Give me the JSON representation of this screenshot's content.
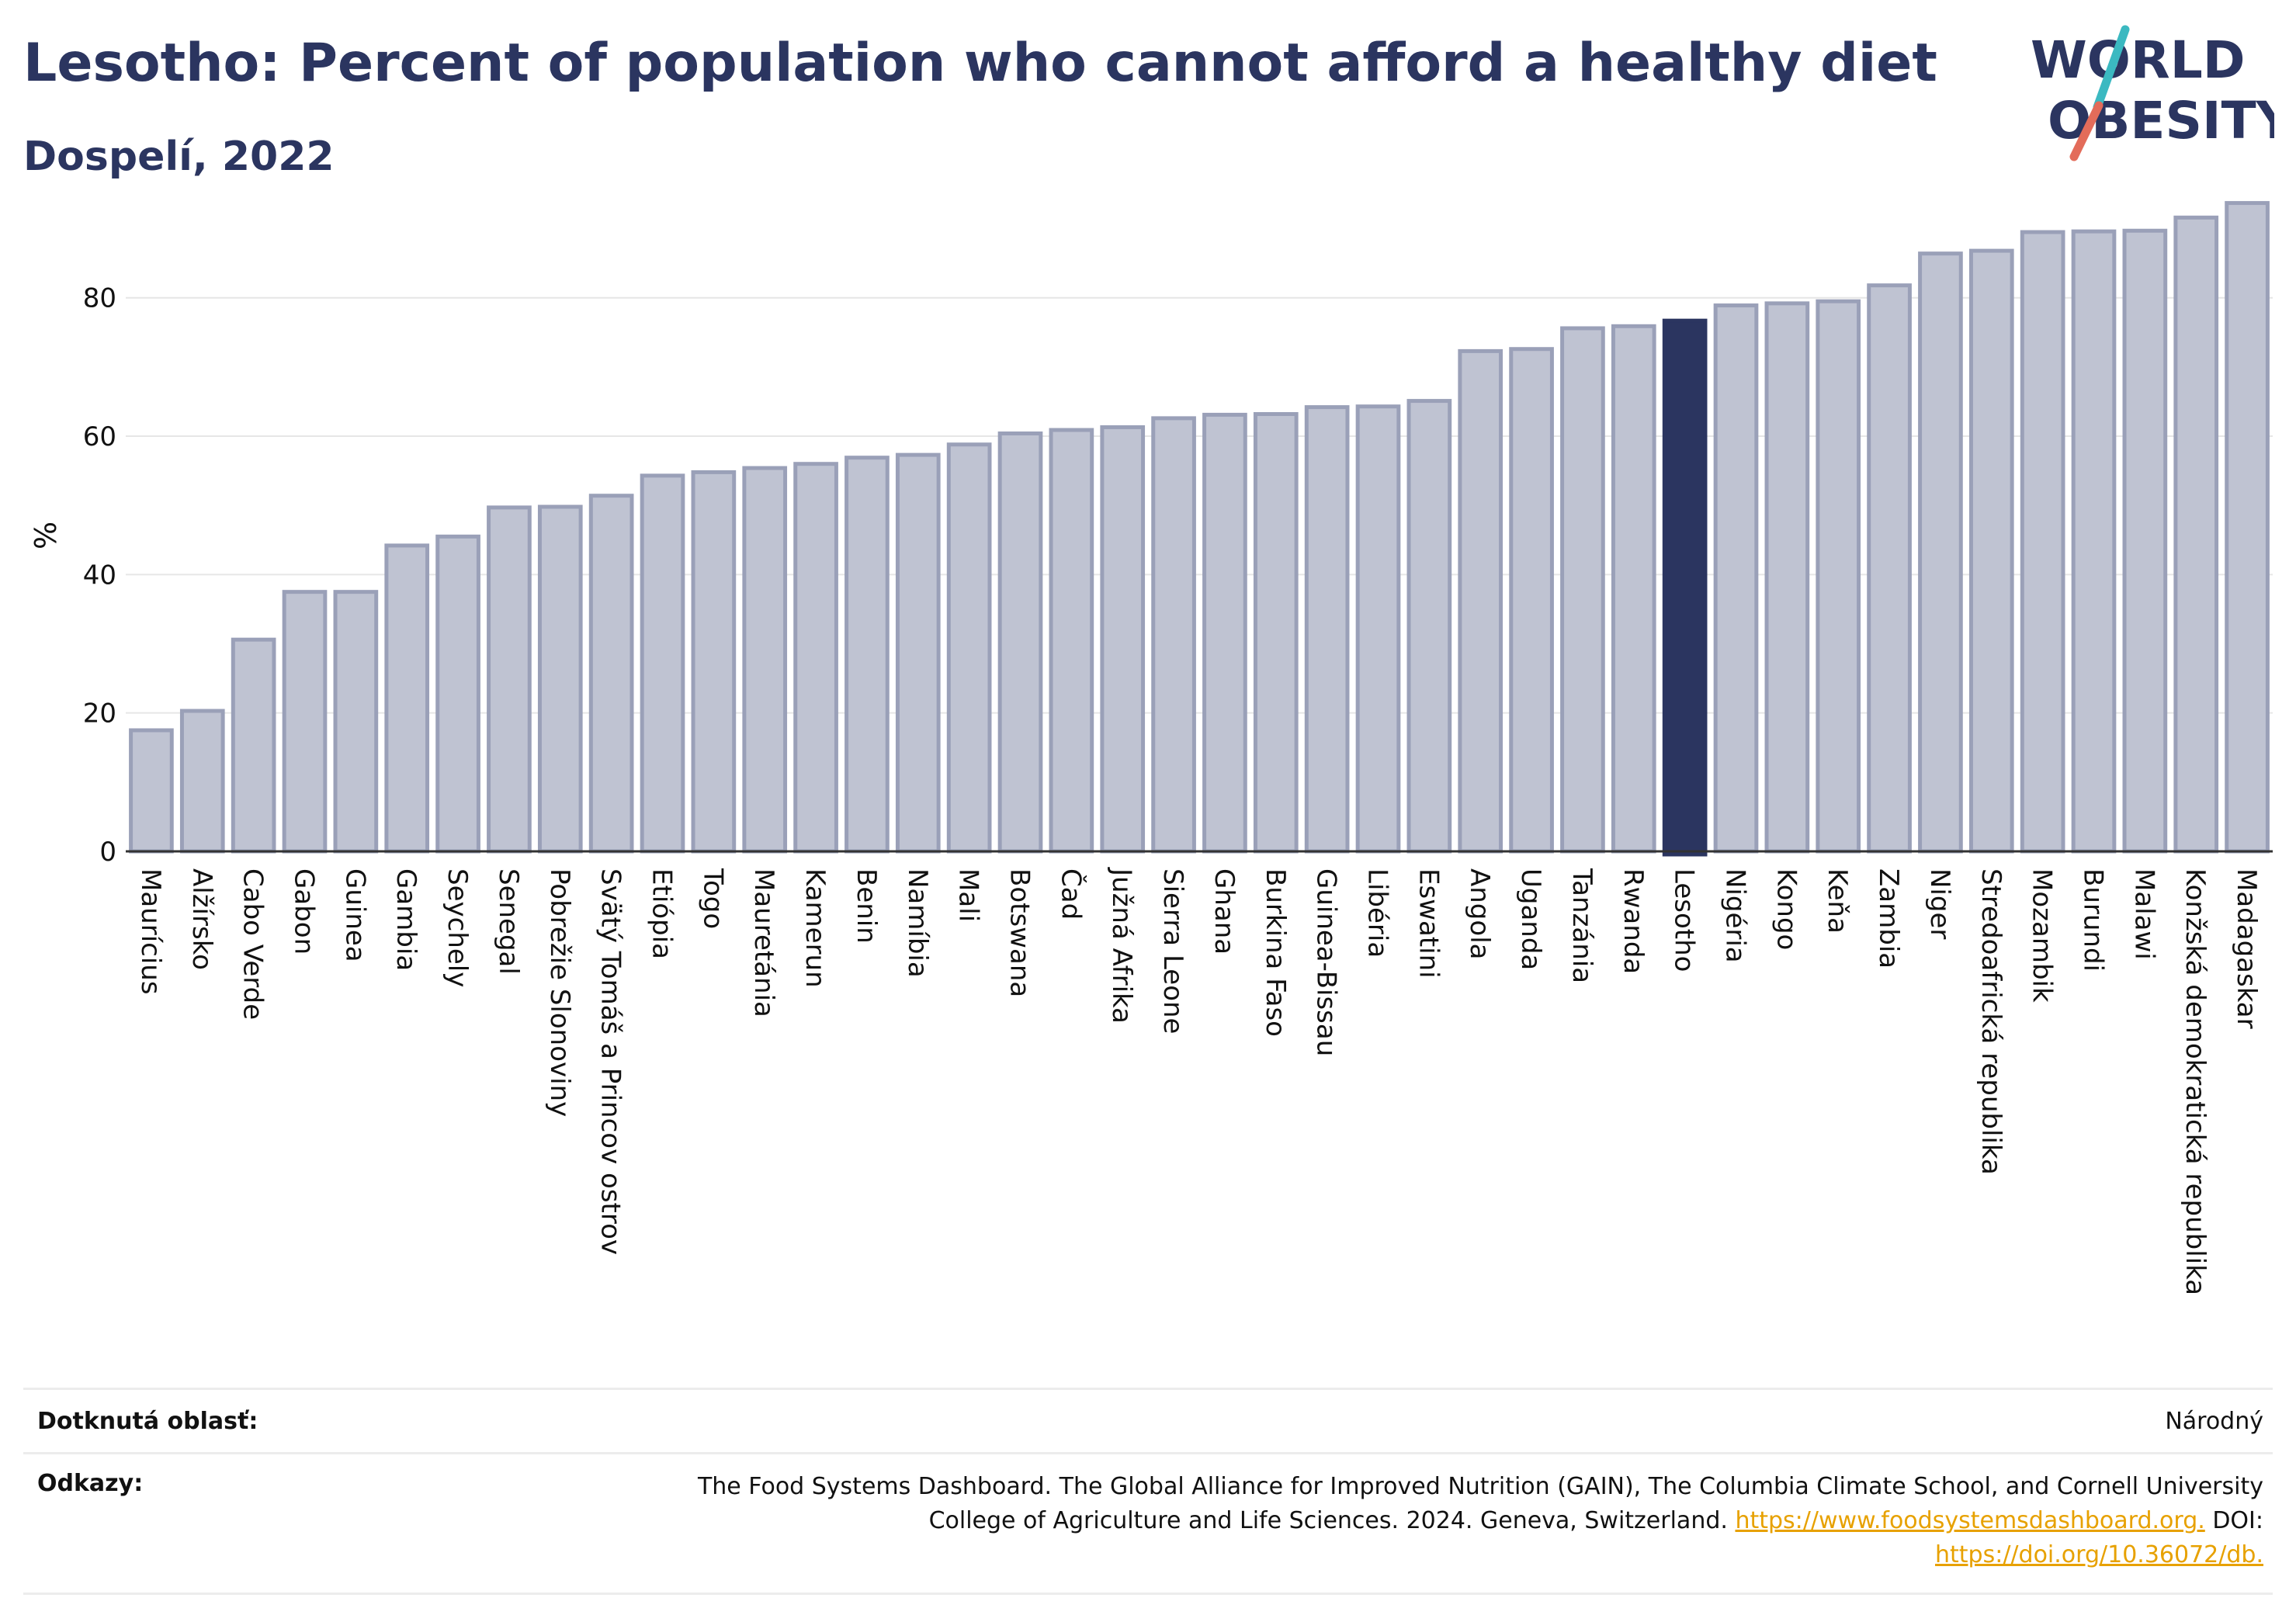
{
  "title": "Lesotho: Percent of population who cannot afford a healthy diet",
  "subtitle": "Dospelí, 2022",
  "logo": {
    "line1": "WORLD",
    "line2": "OBESITY",
    "colors": {
      "text": "#2b3560",
      "slash_top": "#3bb9c1",
      "slash_bottom": "#e36c5a"
    }
  },
  "colors": {
    "bar": "#bfc3d2",
    "bar_stroke": "#9aa0b8",
    "highlight": "#2b3560",
    "axis_text": "#111111",
    "grid": "#e6e6e6",
    "link": "#e7a100"
  },
  "chart_data": {
    "type": "bar",
    "ylabel": "%",
    "ylim": [
      0,
      95
    ],
    "yticks": [
      0,
      20,
      40,
      60,
      80
    ],
    "grid": true,
    "highlight": "Lesotho",
    "categories": [
      "Maurícius",
      "Alžírsko",
      "Cabo Verde",
      "Gabon",
      "Guinea",
      "Gambia",
      "Seychely",
      "Senegal",
      "Pobrežie Slonoviny",
      "Svätý Tomáš a Princov ostrov",
      "Etiópia",
      "Togo",
      "Mauretánia",
      "Kamerun",
      "Benin",
      "Namíbia",
      "Mali",
      "Botswana",
      "Čad",
      "Južná Afrika",
      "Sierra Leone",
      "Ghana",
      "Burkina Faso",
      "Guinea-Bissau",
      "Libéria",
      "Eswatini",
      "Angola",
      "Uganda",
      "Tanzánia",
      "Rwanda",
      "Lesotho",
      "Nigéria",
      "Kongo",
      "Keňa",
      "Zambia",
      "Niger",
      "Stredoafrická republika",
      "Mozambik",
      "Burundi",
      "Malawi",
      "Konžská demokratická republika",
      "Madagaskar"
    ],
    "values": [
      17.5,
      20.3,
      30.6,
      37.5,
      37.5,
      44.2,
      45.5,
      49.7,
      49.8,
      51.4,
      54.3,
      54.8,
      55.4,
      56.0,
      56.9,
      57.3,
      58.8,
      60.4,
      60.9,
      61.3,
      62.6,
      63.1,
      63.2,
      64.2,
      64.3,
      65.1,
      72.3,
      72.6,
      75.6,
      75.9,
      76.7,
      78.9,
      79.2,
      79.5,
      81.8,
      86.4,
      86.8,
      89.5,
      89.6,
      89.7,
      91.6,
      93.7
    ]
  },
  "footer": {
    "area_label": "Dotknutá oblasť:",
    "area_value": "Národný",
    "refs_label": "Odkazy:",
    "refs_line1": "The Food Systems Dashboard. The Global Alliance for Improved Nutrition (GAIN), The Columbia Climate School, and Cornell University",
    "refs_line2": "College of Agriculture and Life Sciences. 2024. Geneva, Switzerland.",
    "refs_link1": "https://www.foodsystemsdashboard.org.",
    "refs_doi": "DOI:",
    "refs_link2": "https://doi.org/10.36072/db."
  }
}
